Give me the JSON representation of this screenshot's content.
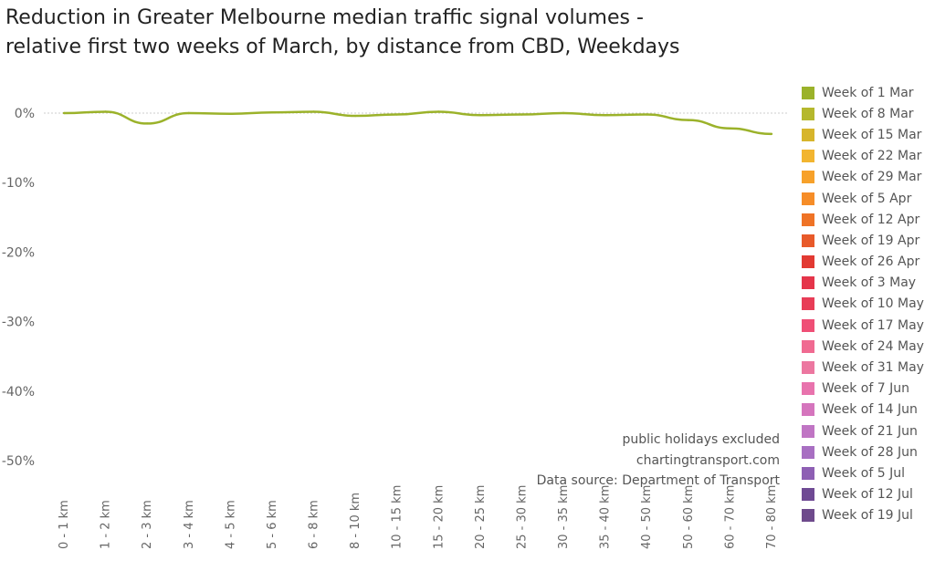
{
  "chart_data": {
    "type": "line",
    "title": "Reduction in Greater Melbourne median traffic signal volumes -\nrelative first two weeks of March, by distance from CBD, Weekdays",
    "xlabel": "",
    "ylabel": "",
    "categories": [
      "0 - 1 km",
      "1 - 2 km",
      "2 - 3 km",
      "3 - 4 km",
      "4 - 5 km",
      "5 - 6 km",
      "6 - 8 km",
      "8 - 10 km",
      "10 - 15 km",
      "15 - 20 km",
      "20 - 25 km",
      "25 - 30 km",
      "30 - 35 km",
      "35 - 40 km",
      "40 - 50 km",
      "50 - 60 km",
      "60 - 70 km",
      "70 - 80 km"
    ],
    "ylim": [
      -55,
      3
    ],
    "yticks": [
      {
        "value": 0,
        "label": "0%"
      },
      {
        "value": -10,
        "label": "-10%"
      },
      {
        "value": -20,
        "label": "-20%"
      },
      {
        "value": -30,
        "label": "-30%"
      },
      {
        "value": -40,
        "label": "-40%"
      },
      {
        "value": -50,
        "label": "-50%"
      }
    ],
    "zero_line": true,
    "grid": false,
    "legend_position": "right",
    "series": [
      {
        "name": "Week of 1 Mar",
        "color": "#9bb22a",
        "values": [
          0,
          0.2,
          -1.5,
          0,
          -0.1,
          0.1,
          0.2,
          -0.4,
          -0.2,
          0.2,
          -0.3,
          -0.2,
          0,
          -0.3,
          -0.2,
          -1,
          -2.2,
          -3
        ]
      }
    ],
    "legend": [
      {
        "name": "Week of 1 Mar",
        "color": "#9bb22a"
      },
      {
        "name": "Week of 8 Mar",
        "color": "#b5b82d"
      },
      {
        "name": "Week of 15 Mar",
        "color": "#d7b52b"
      },
      {
        "name": "Week of 22 Mar",
        "color": "#f2b530"
      },
      {
        "name": "Week of 29 Mar",
        "color": "#f7a12a"
      },
      {
        "name": "Week of 5 Apr",
        "color": "#f68d28"
      },
      {
        "name": "Week of 12 Apr",
        "color": "#ef7326"
      },
      {
        "name": "Week of 19 Apr",
        "color": "#e85a2a"
      },
      {
        "name": "Week of 26 Apr",
        "color": "#e23a32"
      },
      {
        "name": "Week of 3 May",
        "color": "#e5354a"
      },
      {
        "name": "Week of 10 May",
        "color": "#e83d57"
      },
      {
        "name": "Week of 17 May",
        "color": "#ef4f76"
      },
      {
        "name": "Week of 24 May",
        "color": "#f06a91"
      },
      {
        "name": "Week of 31 May",
        "color": "#ec77a0"
      },
      {
        "name": "Week of 7 Jun",
        "color": "#e873ad"
      },
      {
        "name": "Week of 14 Jun",
        "color": "#d575bd"
      },
      {
        "name": "Week of 21 Jun",
        "color": "#c075c4"
      },
      {
        "name": "Week of 28 Jun",
        "color": "#a86fc2"
      },
      {
        "name": "Week of 5 Jul",
        "color": "#8e5fb4"
      },
      {
        "name": "Week of 12 Jul",
        "color": "#6f4a94"
      },
      {
        "name": "Week of 19 Jul",
        "color": "#6e4a8c"
      }
    ],
    "annotations": [
      "public holidays excluded",
      "chartingtransport.com",
      "Data source: Department of Transport"
    ]
  }
}
